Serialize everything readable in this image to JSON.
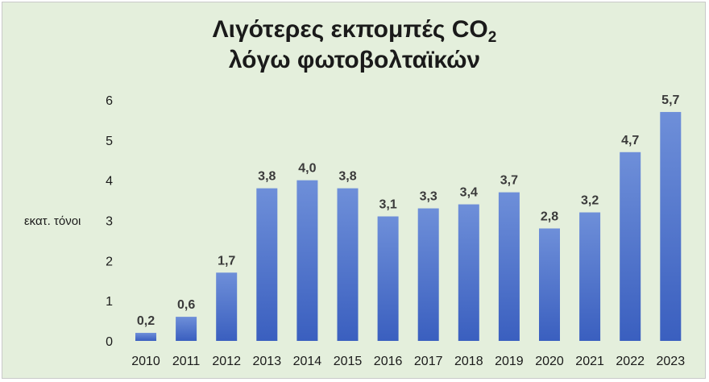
{
  "chart_data": {
    "type": "bar",
    "title_main": "Λιγότερες εκπομπές CO",
    "title_sub": "2",
    "title_line2": "λόγω φωτοβολταϊκών",
    "ylabel": "εκατ. τόνοι",
    "xlabel": "",
    "categories": [
      "2010",
      "2011",
      "2012",
      "2013",
      "2014",
      "2015",
      "2016",
      "2017",
      "2018",
      "2019",
      "2020",
      "2021",
      "2022",
      "2023"
    ],
    "values": [
      0.2,
      0.6,
      1.7,
      3.8,
      4.0,
      3.8,
      3.1,
      3.3,
      3.4,
      3.7,
      2.8,
      3.2,
      4.7,
      5.7
    ],
    "value_labels": [
      "0,2",
      "0,6",
      "1,7",
      "3,8",
      "4,0",
      "3,8",
      "3,1",
      "3,3",
      "3,4",
      "3,7",
      "2,8",
      "3,2",
      "4,7",
      "5,7"
    ],
    "ylim": [
      0,
      6
    ],
    "yticks": [
      "0",
      "1",
      "2",
      "3",
      "4",
      "5",
      "6"
    ],
    "grid": false,
    "legend": "none",
    "bar_color_top": "#6e8fd9",
    "bar_color_bottom": "#3a5fbf",
    "background": "#e4efdc"
  }
}
